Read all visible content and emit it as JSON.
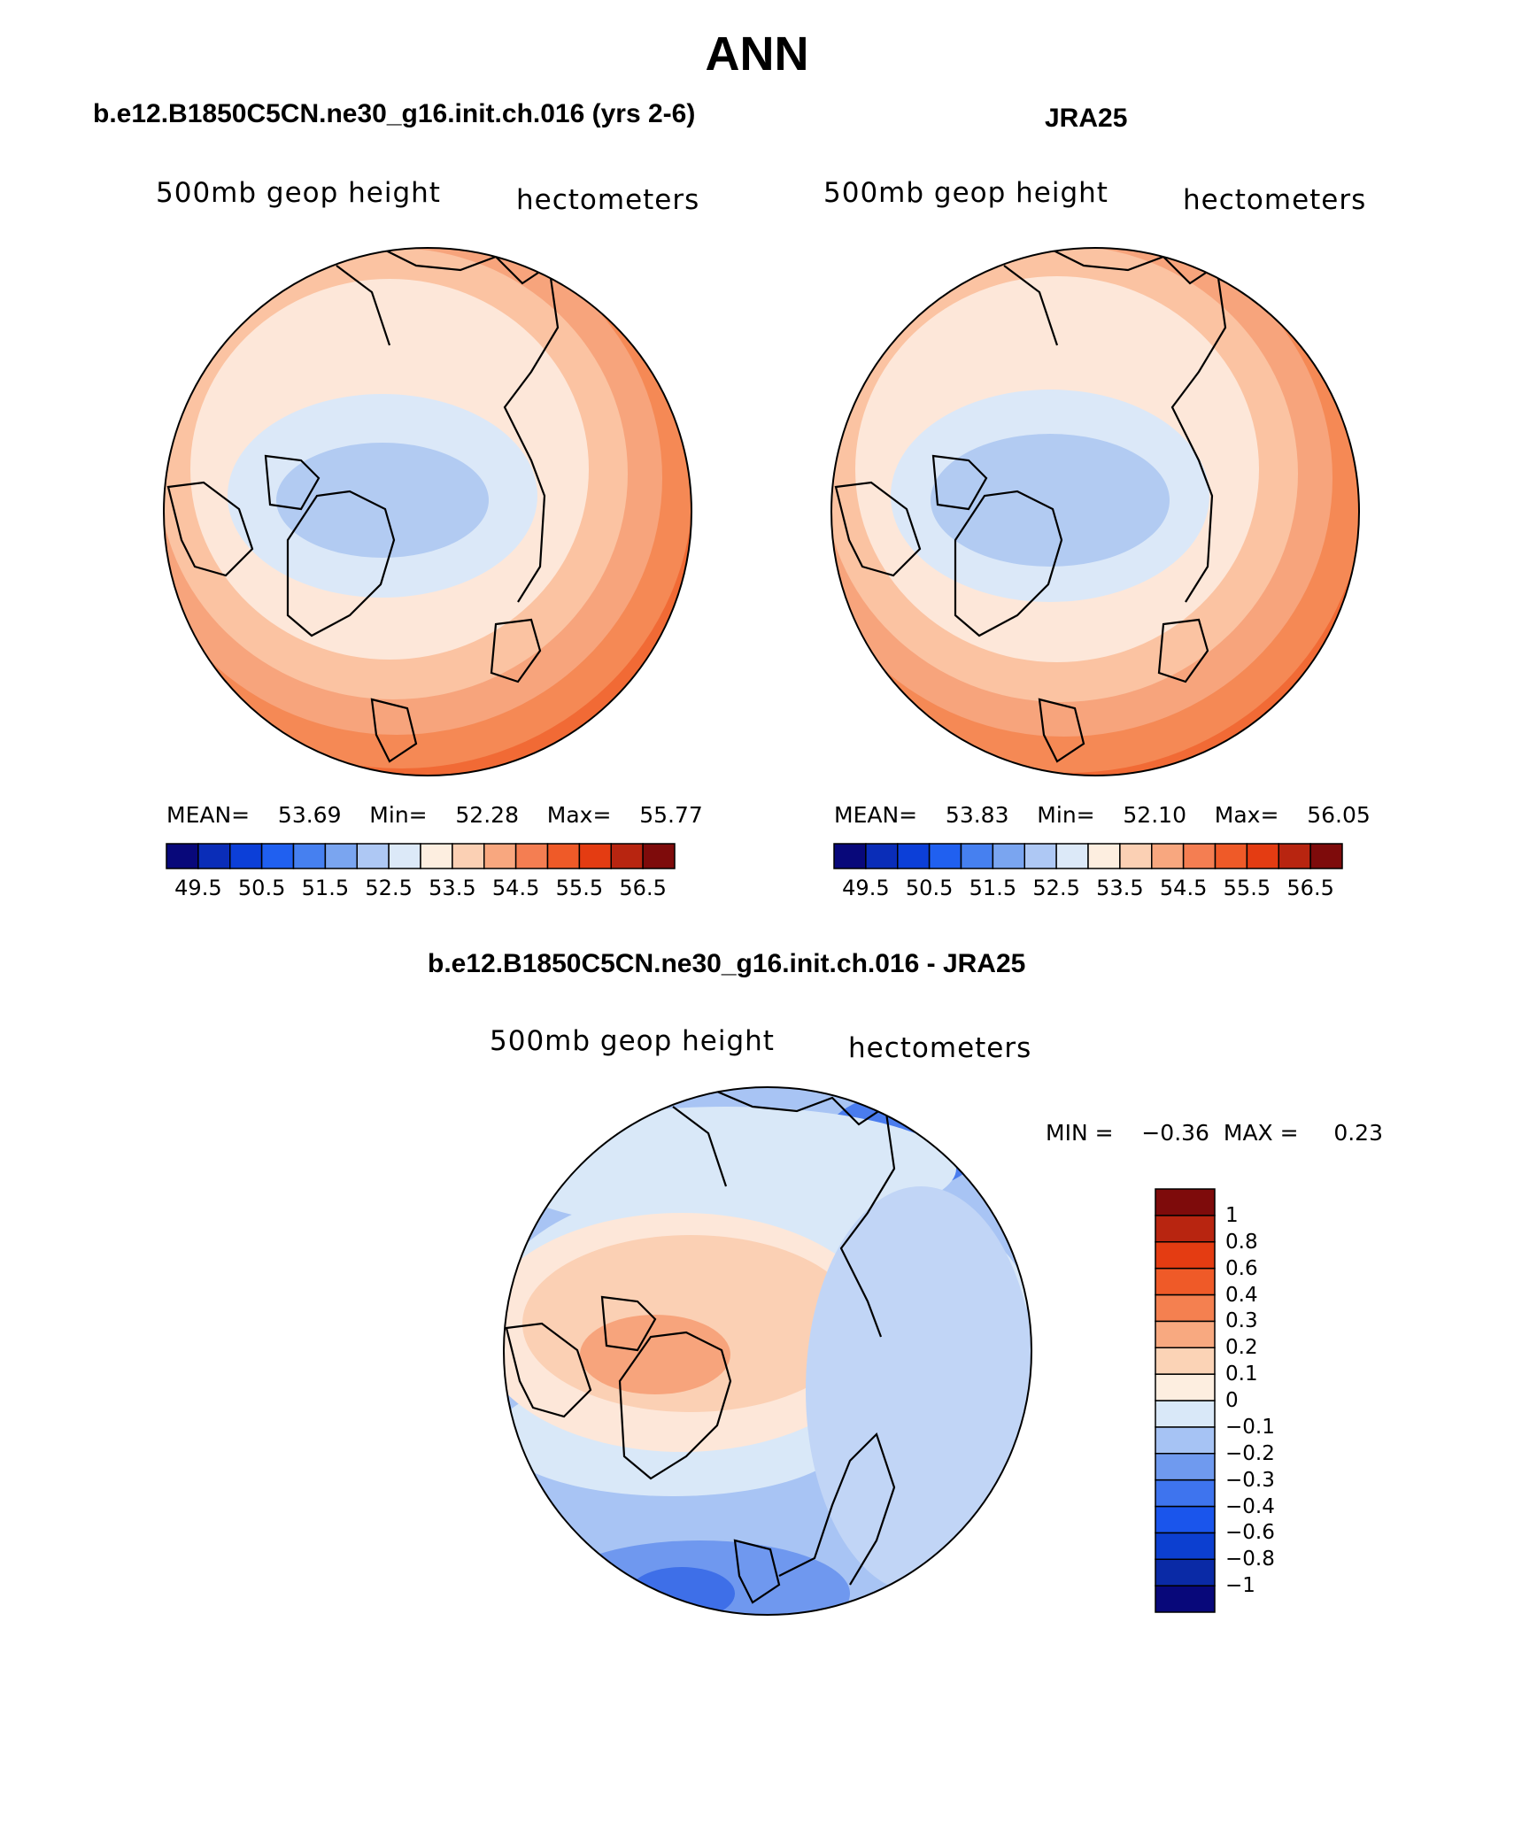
{
  "figure": {
    "title": "ANN",
    "colors": {
      "coast": "#000000",
      "background": "#ffffff"
    }
  },
  "panels": [
    {
      "title": "b.e12.B1850C5CN.ne30_g16.init.ch.016 (yrs 2-6)",
      "variable": "500mb geop height",
      "units": "hectometers",
      "stats": {
        "mean_label": "MEAN=",
        "mean": "53.69",
        "min_label": "Min=",
        "min": "52.28",
        "max_label": "Max=",
        "max": "55.77"
      }
    },
    {
      "title": "JRA25",
      "variable": "500mb geop height",
      "units": "hectometers",
      "stats": {
        "mean_label": "MEAN=",
        "mean": "53.83",
        "min_label": "Min=",
        "min": "52.10",
        "max_label": "Max=",
        "max": "56.05"
      }
    },
    {
      "title": "b.e12.B1850C5CN.ne30_g16.init.ch.016 - JRA25",
      "variable": "500mb geop height",
      "units": "hectometers",
      "stats": {
        "min_label": "MIN =",
        "min": "−0.36",
        "max_label": "MAX =",
        "max": "0.23"
      }
    }
  ],
  "colorbars": {
    "absolute": {
      "colors": [
        "#08087a",
        "#0a2db8",
        "#0c3fd8",
        "#2060f0",
        "#4680f0",
        "#7aa5f0",
        "#aec8f4",
        "#dce9f8",
        "#fdeee0",
        "#fbd0b4",
        "#f8a77f",
        "#f47e52",
        "#ef5a28",
        "#e43c12",
        "#b82510",
        "#7e0b0b"
      ],
      "tick_labels": [
        "49.5",
        "50.5",
        "51.5",
        "52.5",
        "53.5",
        "54.5",
        "55.5",
        "56.5"
      ]
    },
    "difference": {
      "colors": [
        "#08087a",
        "#0a2aa6",
        "#0c3fd0",
        "#1a55ec",
        "#3e74ee",
        "#6f9aef",
        "#a6c3f4",
        "#d9e8f8",
        "#fdeee0",
        "#fbd3b6",
        "#f8a980",
        "#f48050",
        "#ef5a28",
        "#e43c12",
        "#b82510",
        "#7e0b0b"
      ],
      "tick_labels": [
        "−1",
        "−0.8",
        "−0.6",
        "−0.4",
        "−0.3",
        "−0.2",
        "−0.1",
        "0",
        "0.1",
        "0.2",
        "0.3",
        "0.4",
        "0.6",
        "0.8",
        "1"
      ]
    }
  }
}
